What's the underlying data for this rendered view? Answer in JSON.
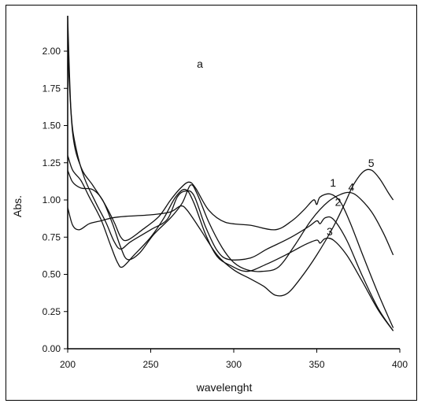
{
  "chart_data": {
    "type": "line",
    "panel_label": "a",
    "xlabel": "wavelenght",
    "ylabel": "Abs.",
    "xlim": [
      200,
      400
    ],
    "ylim": [
      0.0,
      2.0
    ],
    "x_ticks": [
      200,
      250,
      300,
      350,
      400
    ],
    "y_ticks": [
      0.0,
      0.25,
      0.5,
      0.75,
      1.0,
      1.25,
      1.5,
      1.75,
      2.0
    ],
    "y_tick_labels": [
      "0.00",
      "0.25",
      "0.50",
      "0.75",
      "1.00",
      "1.25",
      "1.50",
      "1.75",
      "2.00"
    ],
    "x_tick_labels": [
      "200",
      "250",
      "300",
      "350",
      "400"
    ],
    "grid": false,
    "series": [
      {
        "name": "1",
        "label_at": [
          357,
          1.07
        ],
        "points": [
          [
            200,
            2.0
          ],
          [
            203,
            1.45
          ],
          [
            208,
            1.22
          ],
          [
            215,
            1.1
          ],
          [
            222,
            0.98
          ],
          [
            228,
            0.85
          ],
          [
            232,
            0.75
          ],
          [
            236,
            0.73
          ],
          [
            245,
            0.8
          ],
          [
            255,
            0.89
          ],
          [
            262,
            1.0
          ],
          [
            268,
            1.08
          ],
          [
            273,
            1.12
          ],
          [
            277,
            1.08
          ],
          [
            285,
            0.93
          ],
          [
            295,
            0.85
          ],
          [
            310,
            0.83
          ],
          [
            325,
            0.8
          ],
          [
            335,
            0.86
          ],
          [
            342,
            0.93
          ],
          [
            348,
            1.0
          ],
          [
            350,
            0.97
          ],
          [
            352,
            1.02
          ],
          [
            358,
            1.04
          ],
          [
            364,
            0.99
          ],
          [
            370,
            0.85
          ],
          [
            378,
            0.62
          ],
          [
            387,
            0.37
          ],
          [
            396,
            0.14
          ]
        ]
      },
      {
        "name": "2",
        "label_at": [
          360,
          0.94
        ],
        "points": [
          [
            200,
            2.23
          ],
          [
            202,
            1.6
          ],
          [
            205,
            1.35
          ],
          [
            210,
            1.15
          ],
          [
            217,
            0.98
          ],
          [
            223,
            0.85
          ],
          [
            228,
            0.72
          ],
          [
            232,
            0.67
          ],
          [
            238,
            0.72
          ],
          [
            250,
            0.8
          ],
          [
            260,
            0.87
          ],
          [
            266,
            1.02
          ],
          [
            271,
            1.06
          ],
          [
            276,
            1.03
          ],
          [
            283,
            0.82
          ],
          [
            290,
            0.66
          ],
          [
            297,
            0.6
          ],
          [
            310,
            0.61
          ],
          [
            320,
            0.67
          ],
          [
            333,
            0.74
          ],
          [
            345,
            0.82
          ],
          [
            350,
            0.86
          ],
          [
            352,
            0.84
          ],
          [
            355,
            0.88
          ],
          [
            360,
            0.87
          ],
          [
            368,
            0.73
          ],
          [
            377,
            0.5
          ],
          [
            387,
            0.27
          ],
          [
            396,
            0.12
          ]
        ]
      },
      {
        "name": "3",
        "label_at": [
          355,
          0.74
        ],
        "points": [
          [
            200,
            1.3
          ],
          [
            203,
            1.2
          ],
          [
            208,
            1.13
          ],
          [
            213,
            1.02
          ],
          [
            220,
            0.87
          ],
          [
            226,
            0.69
          ],
          [
            230,
            0.58
          ],
          [
            233,
            0.55
          ],
          [
            240,
            0.63
          ],
          [
            250,
            0.75
          ],
          [
            258,
            0.88
          ],
          [
            265,
            1.02
          ],
          [
            271,
            1.07
          ],
          [
            276,
            0.98
          ],
          [
            283,
            0.77
          ],
          [
            290,
            0.62
          ],
          [
            298,
            0.56
          ],
          [
            308,
            0.52
          ],
          [
            320,
            0.57
          ],
          [
            333,
            0.64
          ],
          [
            343,
            0.7
          ],
          [
            350,
            0.73
          ],
          [
            352,
            0.71
          ],
          [
            355,
            0.74
          ],
          [
            360,
            0.73
          ],
          [
            368,
            0.63
          ],
          [
            377,
            0.46
          ],
          [
            387,
            0.26
          ],
          [
            396,
            0.12
          ]
        ]
      },
      {
        "name": "4",
        "label_at": [
          368,
          1.04
        ],
        "points": [
          [
            200,
            1.2
          ],
          [
            203,
            1.12
          ],
          [
            208,
            1.08
          ],
          [
            215,
            1.07
          ],
          [
            221,
            1.0
          ],
          [
            227,
            0.84
          ],
          [
            232,
            0.68
          ],
          [
            236,
            0.6
          ],
          [
            243,
            0.64
          ],
          [
            252,
            0.77
          ],
          [
            262,
            0.88
          ],
          [
            269,
            0.98
          ],
          [
            274,
            1.1
          ],
          [
            278,
            1.04
          ],
          [
            285,
            0.85
          ],
          [
            293,
            0.68
          ],
          [
            300,
            0.58
          ],
          [
            308,
            0.53
          ],
          [
            317,
            0.52
          ],
          [
            327,
            0.55
          ],
          [
            337,
            0.7
          ],
          [
            347,
            0.87
          ],
          [
            357,
            0.99
          ],
          [
            365,
            1.04
          ],
          [
            370,
            1.05
          ],
          [
            375,
            1.02
          ],
          [
            383,
            0.92
          ],
          [
            390,
            0.78
          ],
          [
            396,
            0.63
          ]
        ]
      },
      {
        "name": "5",
        "label_at": [
          380,
          1.2
        ],
        "points": [
          [
            200,
            0.95
          ],
          [
            203,
            0.83
          ],
          [
            207,
            0.8
          ],
          [
            213,
            0.84
          ],
          [
            220,
            0.86
          ],
          [
            227,
            0.88
          ],
          [
            235,
            0.89
          ],
          [
            250,
            0.9
          ],
          [
            262,
            0.92
          ],
          [
            268,
            0.96
          ],
          [
            272,
            0.93
          ],
          [
            280,
            0.8
          ],
          [
            290,
            0.63
          ],
          [
            300,
            0.53
          ],
          [
            310,
            0.47
          ],
          [
            318,
            0.42
          ],
          [
            325,
            0.36
          ],
          [
            332,
            0.37
          ],
          [
            340,
            0.47
          ],
          [
            350,
            0.63
          ],
          [
            360,
            0.82
          ],
          [
            367,
            0.98
          ],
          [
            372,
            1.1
          ],
          [
            378,
            1.19
          ],
          [
            383,
            1.2
          ],
          [
            388,
            1.14
          ],
          [
            393,
            1.05
          ],
          [
            396,
            1.0
          ]
        ]
      }
    ]
  }
}
